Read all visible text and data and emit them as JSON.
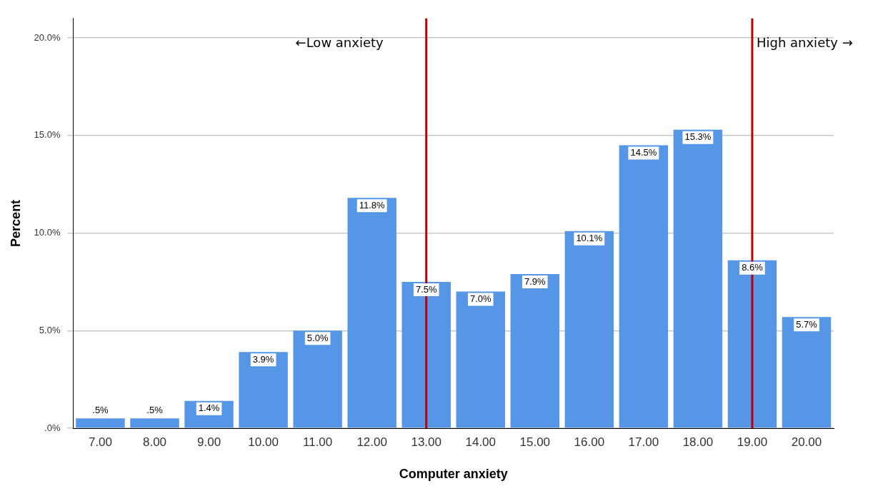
{
  "chart_data": {
    "type": "bar",
    "xlabel": "Computer anxiety",
    "ylabel": "Percent",
    "categories": [
      "7.00",
      "8.00",
      "9.00",
      "10.00",
      "11.00",
      "12.00",
      "13.00",
      "14.00",
      "15.00",
      "16.00",
      "17.00",
      "18.00",
      "19.00",
      "20.00"
    ],
    "values": [
      0.5,
      0.5,
      1.4,
      3.9,
      5.0,
      11.8,
      7.5,
      7.0,
      7.9,
      10.1,
      14.5,
      15.3,
      8.6,
      5.7
    ],
    "value_labels": [
      ".5%",
      ".5%",
      "1.4%",
      "3.9%",
      "5.0%",
      "11.8%",
      "7.5%",
      "7.0%",
      "7.9%",
      "10.1%",
      "14.5%",
      "15.3%",
      "8.6%",
      "5.7%"
    ],
    "color": "#5596e6",
    "ylim": [
      0,
      21
    ],
    "yticks": [
      {
        "value": 0,
        "label": ".0%"
      },
      {
        "value": 5,
        "label": "5.0%"
      },
      {
        "value": 10,
        "label": "10.0%"
      },
      {
        "value": 15,
        "label": "15.0%"
      },
      {
        "value": 20,
        "label": "20.0%"
      }
    ],
    "grid": "y",
    "legend": false,
    "ref_lines": [
      {
        "axis": "x",
        "value": "13.00",
        "color": "#c00000"
      },
      {
        "axis": "x",
        "value": "19.00",
        "color": "#c00000"
      }
    ],
    "annotations": [
      "←Low anxiety",
      "High anxiety →"
    ]
  }
}
